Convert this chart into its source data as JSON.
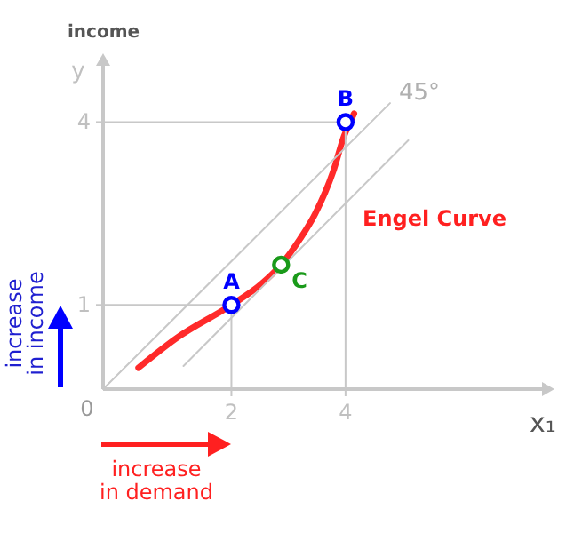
{
  "chart_data": {
    "type": "line",
    "xlabel": "x₁",
    "ylabel": "y",
    "xlim": [
      -0.25,
      7.6
    ],
    "ylim": [
      -0.38,
      5.07
    ],
    "xticks": [
      2,
      4
    ],
    "yticks": [
      1,
      4
    ],
    "grid": false,
    "line_style": "solid",
    "series": [
      {
        "color": "#ff2a2a",
        "x": [
          0.37,
          1.06,
          2,
          2.52,
          2.87,
          3.2,
          3.47,
          3.78,
          3.97,
          4.15
        ],
        "values": [
          -0.03,
          0.47,
          1,
          1.34,
          1.66,
          2.08,
          2.5,
          3.18,
          3.76,
          4.14
        ]
      },
      {
        "color": "#c8c8c8",
        "x": [
          -0.25,
          4.78
        ],
        "values": [
          -0.38,
          4.31
        ]
      },
      {
        "color": "#c8c8c8",
        "x": [
          1.16,
          5.1
        ],
        "values": [
          0,
          3.7
        ]
      },
      {
        "color": "#c8c8c8",
        "x": [
          -0.25,
          4,
          4
        ],
        "values": [
          4,
          4,
          -0.38
        ]
      },
      {
        "color": "#c8c8c8",
        "x": [
          -0.25,
          2,
          2
        ],
        "values": [
          1,
          1,
          -0.38
        ]
      },
      {
        "type": "scatter",
        "marker": "circle",
        "color": "#0000ff",
        "x": [
          2,
          4
        ],
        "values": [
          1,
          4
        ]
      },
      {
        "type": "scatter",
        "marker": "circle",
        "color": "#1a9a1a",
        "x": [
          2.87
        ],
        "values": [
          1.66
        ]
      }
    ],
    "annotations": [
      {
        "text": "A",
        "x": 2,
        "y": 1
      },
      {
        "text": "B",
        "x": 4,
        "y": 4
      },
      {
        "text": "C",
        "x": 2.87,
        "y": 1.66
      },
      {
        "text": "45°",
        "x": 4.78,
        "y": 4.31
      },
      "Engel Curve",
      "income",
      "0",
      "increase\nin income",
      "increase\nin demand"
    ]
  }
}
